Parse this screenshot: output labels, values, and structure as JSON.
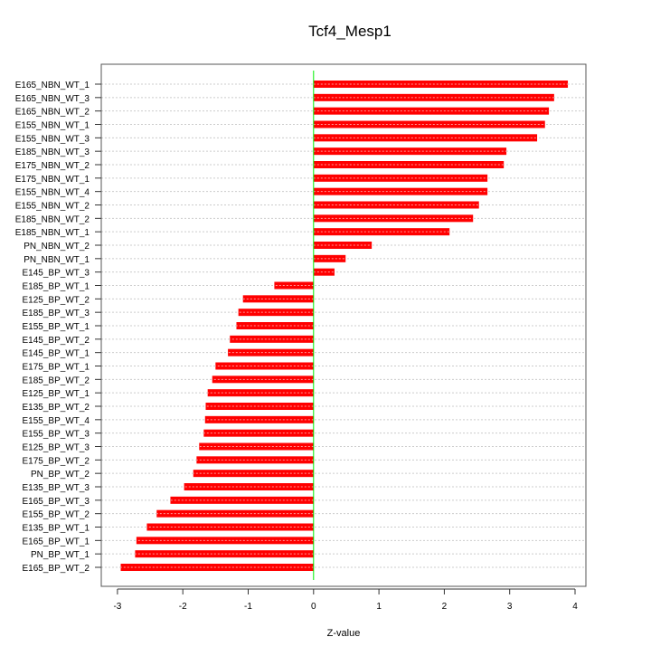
{
  "chart_data": {
    "type": "bar",
    "orientation": "horizontal",
    "title": "Tcf4_Mesp1",
    "xlabel": "Z-value",
    "ylabel": "",
    "xlim": [
      -3.2,
      4.2
    ],
    "xticks": [
      -3,
      -2,
      -1,
      0,
      1,
      2,
      3,
      4
    ],
    "grid": true,
    "bar_color": "#ff0000",
    "zero_line_color": "#00ee00",
    "categories": [
      "E165_NBN_WT_1",
      "E165_NBN_WT_3",
      "E165_NBN_WT_2",
      "E155_NBN_WT_1",
      "E155_NBN_WT_3",
      "E185_NBN_WT_3",
      "E175_NBN_WT_2",
      "E175_NBN_WT_1",
      "E155_NBN_WT_4",
      "E155_NBN_WT_2",
      "E185_NBN_WT_2",
      "E185_NBN_WT_1",
      "PN_NBN_WT_2",
      "PN_NBN_WT_1",
      "E145_BP_WT_3",
      "E185_BP_WT_1",
      "E125_BP_WT_2",
      "E185_BP_WT_3",
      "E155_BP_WT_1",
      "E145_BP_WT_2",
      "E145_BP_WT_1",
      "E175_BP_WT_1",
      "E185_BP_WT_2",
      "E125_BP_WT_1",
      "E135_BP_WT_2",
      "E155_BP_WT_4",
      "E155_BP_WT_3",
      "E125_BP_WT_3",
      "E175_BP_WT_2",
      "PN_BP_WT_2",
      "E135_BP_WT_3",
      "E165_BP_WT_3",
      "E155_BP_WT_2",
      "E135_BP_WT_1",
      "E165_BP_WT_1",
      "PN_BP_WT_1",
      "E165_BP_WT_2"
    ],
    "values": [
      3.89,
      3.68,
      3.6,
      3.54,
      3.42,
      2.95,
      2.91,
      2.66,
      2.66,
      2.53,
      2.44,
      2.08,
      0.89,
      0.49,
      0.32,
      -0.6,
      -1.08,
      -1.15,
      -1.18,
      -1.28,
      -1.31,
      -1.5,
      -1.55,
      -1.62,
      -1.65,
      -1.66,
      -1.68,
      -1.75,
      -1.79,
      -1.84,
      -1.98,
      -2.19,
      -2.4,
      -2.55,
      -2.71,
      -2.73,
      -2.95
    ]
  }
}
